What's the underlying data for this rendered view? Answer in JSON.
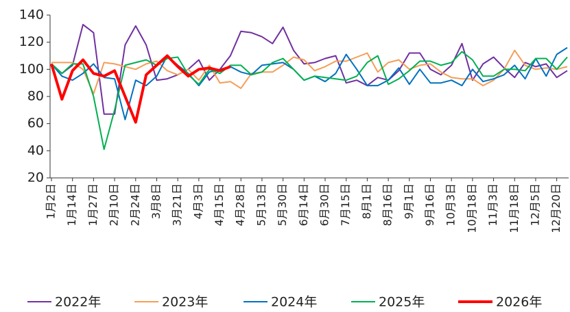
{
  "chart_data": {
    "type": "line",
    "categories": [
      "1月2日",
      null,
      "1月14日",
      null,
      "1月27日",
      null,
      "2月10日",
      null,
      "2月24日",
      null,
      "3月8日",
      null,
      "3月21日",
      null,
      "4月3日",
      null,
      "4月15日",
      null,
      "4月28日",
      null,
      "5月13日",
      null,
      "5月30日",
      null,
      "6月14日",
      null,
      "6月30日",
      null,
      "7月15日",
      null,
      "8月1日",
      null,
      "8月16日",
      null,
      "9月1日",
      null,
      "9月16日",
      null,
      "10月3日",
      null,
      "10月18日",
      null,
      "11月3日",
      null,
      "11月18日",
      null,
      "12月5日",
      null,
      "12月20日",
      null
    ],
    "ylim": [
      20,
      140
    ],
    "yticks": [
      20,
      40,
      60,
      80,
      100,
      120,
      140
    ],
    "series": [
      {
        "name": "2022年",
        "color": "#7030a0",
        "values": [
          104,
          97,
          103,
          133,
          127,
          67,
          67,
          118,
          132,
          118,
          92,
          93,
          96,
          100,
          107,
          92,
          100,
          110,
          128,
          127,
          124,
          119,
          131,
          114,
          104,
          105,
          108,
          110,
          90,
          92,
          88,
          94,
          92,
          99,
          112,
          112,
          100,
          96,
          103,
          119,
          92,
          104,
          109,
          101,
          94,
          105,
          102,
          104,
          94,
          99
        ]
      },
      {
        "name": "2023年",
        "color": "#f59d56",
        "values": [
          105,
          105,
          105,
          100,
          82,
          105,
          104,
          102,
          100,
          104,
          106,
          99,
          96,
          100,
          92,
          103,
          90,
          91,
          86,
          97,
          98,
          98,
          103,
          109,
          107,
          99,
          102,
          106,
          106,
          109,
          112,
          98,
          105,
          107,
          100,
          103,
          104,
          98,
          94,
          93,
          93,
          88,
          92,
          100,
          114,
          103,
          100,
          101,
          100,
          102
        ]
      },
      {
        "name": "2024年",
        "color": "#0070c0",
        "values": [
          104,
          95,
          92,
          97,
          104,
          94,
          93,
          63,
          92,
          88,
          95,
          110,
          103,
          97,
          88,
          98,
          100,
          102,
          98,
          96,
          103,
          104,
          105,
          100,
          92,
          95,
          91,
          97,
          111,
          100,
          88,
          88,
          92,
          101,
          89,
          100,
          90,
          90,
          92,
          88,
          100,
          91,
          93,
          96,
          103,
          93,
          108,
          95,
          111,
          116
        ]
      },
      {
        "name": "2025年",
        "color": "#00b050",
        "values": [
          104,
          97,
          104,
          104,
          80,
          41,
          70,
          103,
          105,
          107,
          103,
          108,
          109,
          96,
          89,
          100,
          97,
          103,
          103,
          96,
          98,
          105,
          108,
          100,
          92,
          95,
          94,
          93,
          92,
          95,
          105,
          110,
          89,
          93,
          99,
          106,
          106,
          103,
          105,
          113,
          107,
          95,
          95,
          100,
          100,
          99,
          108,
          108,
          100,
          109
        ]
      },
      {
        "name": "2026年",
        "color": "#ff0000",
        "values": [
          104,
          78,
          99,
          107,
          97,
          95,
          99,
          80,
          61,
          96,
          103,
          110,
          102,
          95,
          100,
          101,
          99,
          102,
          null,
          null,
          null,
          null,
          null,
          null,
          null,
          null,
          null,
          null,
          null,
          null,
          null,
          null,
          null,
          null,
          null,
          null,
          null,
          null,
          null,
          null,
          null,
          null,
          null,
          null,
          null,
          null,
          null,
          null,
          null,
          null
        ]
      }
    ]
  }
}
